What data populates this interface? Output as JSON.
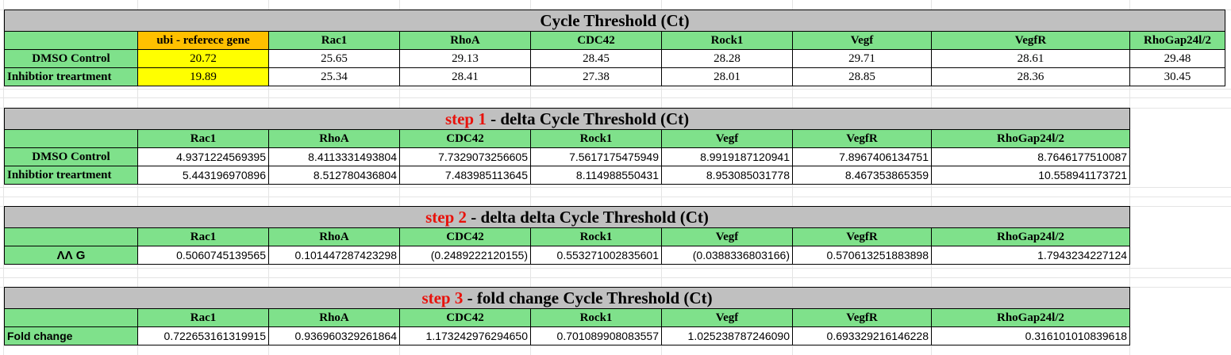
{
  "table1": {
    "title": "Cycle Threshold (Ct)",
    "ref_header": "ubi - referece gene",
    "genes": [
      "Rac1",
      "RhoA",
      "CDC42",
      "Rock1",
      "Vegf",
      "VegfR",
      "RhoGap24l/2"
    ],
    "rows": [
      {
        "label": "DMSO Control",
        "ref": "20.72",
        "values": [
          "25.65",
          "29.13",
          "28.45",
          "28.28",
          "29.71",
          "28.61",
          "29.48"
        ]
      },
      {
        "label": "Inhibtior treartment",
        "ref": "19.89",
        "values": [
          "25.34",
          "28.41",
          "27.38",
          "28.01",
          "28.85",
          "28.36",
          "30.45"
        ]
      }
    ]
  },
  "table2": {
    "step": "step 1",
    "title_rest": " - delta Cycle Threshold (Ct)",
    "genes": [
      "Rac1",
      "RhoA",
      "CDC42",
      "Rock1",
      "Vegf",
      "VegfR",
      "RhoGap24l/2"
    ],
    "rows": [
      {
        "label": "DMSO Control",
        "values": [
          "4.9371224569395",
          "8.4113331493804",
          "7.7329073256605",
          "7.5617175475949",
          "8.9919187120941",
          "7.8967406134751",
          "8.7646177510087"
        ]
      },
      {
        "label": "Inhibtior treartment",
        "values": [
          "5.443196970896",
          "8.512780436804",
          "7.483985113645",
          "8.114988550431",
          "8.953085031778",
          "8.467353865359",
          "10.558941173721"
        ]
      }
    ]
  },
  "table3": {
    "step": "step 2",
    "title_rest": " - delta delta Cycle Threshold (Ct)",
    "genes": [
      "Rac1",
      "RhoA",
      "CDC42",
      "Rock1",
      "Vegf",
      "VegfR",
      "RhoGap24l/2"
    ],
    "rows": [
      {
        "label": "ΛΛ G",
        "values": [
          "0.5060745139565",
          "0.101447287423298",
          "(0.2489222120155)",
          "0.553271002835601",
          "(0.0388336803166)",
          "0.570613251883898",
          "1.7943234227124"
        ]
      }
    ]
  },
  "table4": {
    "step": "step 3",
    "title_rest": " - fold change Cycle Threshold (Ct)",
    "genes": [
      "Rac1",
      "RhoA",
      "CDC42",
      "Rock1",
      "Vegf",
      "VegfR",
      "RhoGap24l/2"
    ],
    "rows": [
      {
        "label": "Fold change",
        "values": [
          "0.722653161319915",
          "0.936960329261864",
          "1.173242976294650",
          "0.701089908083557",
          "1.025238787246090",
          "0.693329216146228",
          "0.316101010839618"
        ]
      }
    ]
  },
  "colors": {
    "title_bg": "#c0c0c0",
    "header_bg": "#7fe18b",
    "ref_header_bg": "#ffc000",
    "ref_value_bg": "#ffff00",
    "step_text": "#e8120c"
  }
}
